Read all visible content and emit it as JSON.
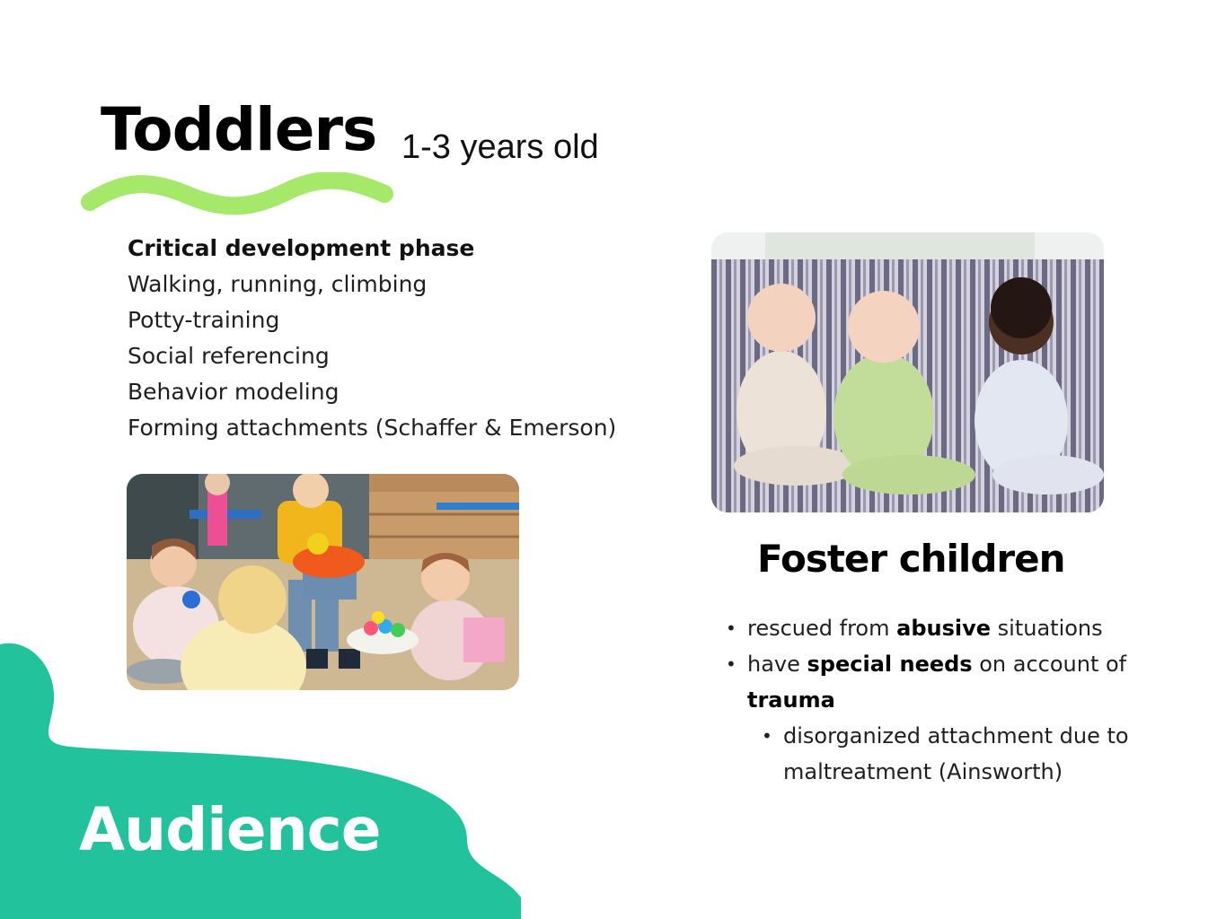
{
  "slide": {
    "title": "Toddlers",
    "subtitle": "1-3 years old",
    "toddler_points": {
      "heading": "Critical development phase",
      "items": [
        "Walking, running, climbing",
        "Potty-training",
        "Social referencing",
        "Behavior modeling",
        "Forming attachments (Schaffer & Emerson)"
      ]
    },
    "foster": {
      "title": "Foster children",
      "b1_pre": "rescued from ",
      "b1_bold": "abusive",
      "b1_post": " situations",
      "b2_pre": "have ",
      "b2_bold": "special needs",
      "b2_mid": " on account of ",
      "b2_bold2": "trauma",
      "sub": "disorganized attachment due to maltreatment (Ainsworth)"
    },
    "section_label": "Audience",
    "colors": {
      "accent_green": "#a6e86a",
      "blob_teal": "#21c29c"
    }
  }
}
